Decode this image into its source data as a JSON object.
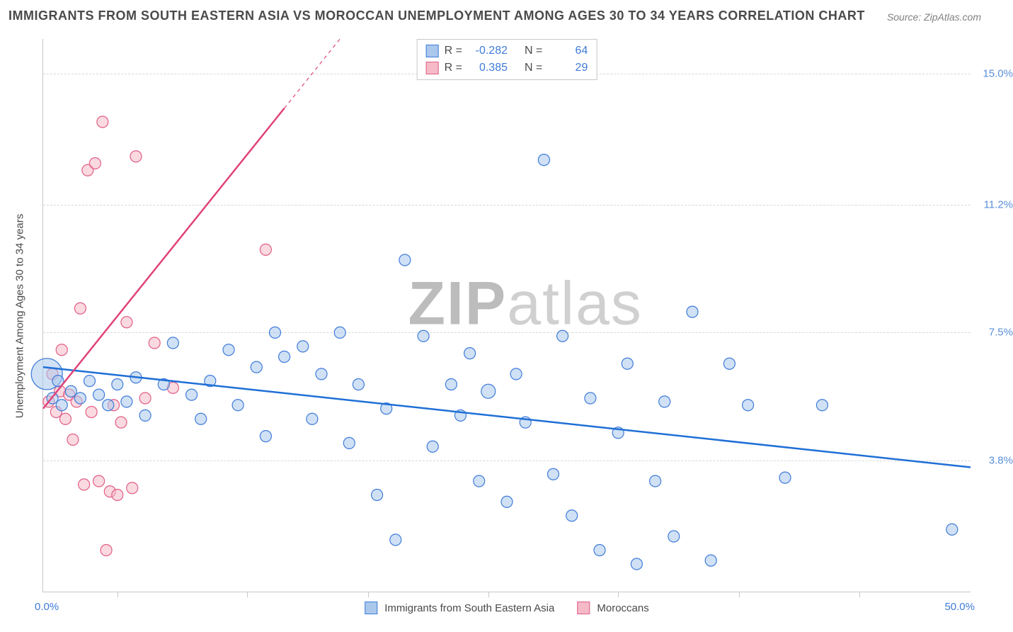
{
  "title": "IMMIGRANTS FROM SOUTH EASTERN ASIA VS MOROCCAN UNEMPLOYMENT AMONG AGES 30 TO 34 YEARS CORRELATION CHART",
  "source_label": "Source: ZipAtlas.com",
  "watermark_prefix": "ZIP",
  "watermark_suffix": "atlas",
  "y_axis_label": "Unemployment Among Ages 30 to 34 years",
  "x_axis": {
    "min": 0.0,
    "max": 50.0,
    "start_label": "0.0%",
    "end_label": "50.0%",
    "tick_positions_pct": [
      8,
      22,
      35,
      48,
      62,
      75,
      88
    ]
  },
  "y_axis": {
    "min": 0.0,
    "max": 16.0,
    "tick_values": [
      3.8,
      7.5,
      11.2,
      15.0
    ],
    "tick_labels": [
      "3.8%",
      "7.5%",
      "11.2%",
      "15.0%"
    ]
  },
  "grid_color": "#d8d8d8",
  "background_color": "#ffffff",
  "series": {
    "blue": {
      "label": "Immigrants from South Eastern Asia",
      "fill": "#a9c8ec",
      "stroke": "#3f7bd9",
      "fill_opacity": 0.55,
      "line_color": "#1f6fd6",
      "line_width": 2.5,
      "R": "-0.282",
      "N": "64",
      "trend": {
        "x1": 0.0,
        "y1": 6.5,
        "x2": 50.0,
        "y2": 3.6
      },
      "points": [
        {
          "x": 0.2,
          "y": 6.3,
          "r": 22
        },
        {
          "x": 0.5,
          "y": 5.6,
          "r": 8
        },
        {
          "x": 0.8,
          "y": 6.1,
          "r": 8
        },
        {
          "x": 1.0,
          "y": 5.4,
          "r": 8
        },
        {
          "x": 1.5,
          "y": 5.8,
          "r": 8
        },
        {
          "x": 2.0,
          "y": 5.6,
          "r": 8
        },
        {
          "x": 2.5,
          "y": 6.1,
          "r": 8
        },
        {
          "x": 3.0,
          "y": 5.7,
          "r": 8
        },
        {
          "x": 3.5,
          "y": 5.4,
          "r": 8
        },
        {
          "x": 4.0,
          "y": 6.0,
          "r": 8
        },
        {
          "x": 4.5,
          "y": 5.5,
          "r": 8
        },
        {
          "x": 5.0,
          "y": 6.2,
          "r": 8
        },
        {
          "x": 5.5,
          "y": 5.1,
          "r": 8
        },
        {
          "x": 6.5,
          "y": 6.0,
          "r": 8
        },
        {
          "x": 7.0,
          "y": 7.2,
          "r": 8
        },
        {
          "x": 8.0,
          "y": 5.7,
          "r": 8
        },
        {
          "x": 8.5,
          "y": 5.0,
          "r": 8
        },
        {
          "x": 9.0,
          "y": 6.1,
          "r": 8
        },
        {
          "x": 10.0,
          "y": 7.0,
          "r": 8
        },
        {
          "x": 10.5,
          "y": 5.4,
          "r": 8
        },
        {
          "x": 11.5,
          "y": 6.5,
          "r": 8
        },
        {
          "x": 12.0,
          "y": 4.5,
          "r": 8
        },
        {
          "x": 12.5,
          "y": 7.5,
          "r": 8
        },
        {
          "x": 13.0,
          "y": 6.8,
          "r": 8
        },
        {
          "x": 14.0,
          "y": 7.1,
          "r": 8
        },
        {
          "x": 14.5,
          "y": 5.0,
          "r": 8
        },
        {
          "x": 15.0,
          "y": 6.3,
          "r": 8
        },
        {
          "x": 16.0,
          "y": 7.5,
          "r": 8
        },
        {
          "x": 16.5,
          "y": 4.3,
          "r": 8
        },
        {
          "x": 17.0,
          "y": 6.0,
          "r": 8
        },
        {
          "x": 18.0,
          "y": 2.8,
          "r": 8
        },
        {
          "x": 18.5,
          "y": 5.3,
          "r": 8
        },
        {
          "x": 19.0,
          "y": 1.5,
          "r": 8
        },
        {
          "x": 19.5,
          "y": 9.6,
          "r": 8
        },
        {
          "x": 20.5,
          "y": 7.4,
          "r": 8
        },
        {
          "x": 21.0,
          "y": 4.2,
          "r": 8
        },
        {
          "x": 22.0,
          "y": 6.0,
          "r": 8
        },
        {
          "x": 22.5,
          "y": 5.1,
          "r": 8
        },
        {
          "x": 23.0,
          "y": 6.9,
          "r": 8
        },
        {
          "x": 23.5,
          "y": 3.2,
          "r": 8
        },
        {
          "x": 24.0,
          "y": 5.8,
          "r": 10
        },
        {
          "x": 25.0,
          "y": 2.6,
          "r": 8
        },
        {
          "x": 25.5,
          "y": 6.3,
          "r": 8
        },
        {
          "x": 26.0,
          "y": 4.9,
          "r": 8
        },
        {
          "x": 27.0,
          "y": 12.5,
          "r": 8
        },
        {
          "x": 27.5,
          "y": 3.4,
          "r": 8
        },
        {
          "x": 28.0,
          "y": 7.4,
          "r": 8
        },
        {
          "x": 28.5,
          "y": 2.2,
          "r": 8
        },
        {
          "x": 29.5,
          "y": 5.6,
          "r": 8
        },
        {
          "x": 30.0,
          "y": 1.2,
          "r": 8
        },
        {
          "x": 31.0,
          "y": 4.6,
          "r": 8
        },
        {
          "x": 31.5,
          "y": 6.6,
          "r": 8
        },
        {
          "x": 32.0,
          "y": 0.8,
          "r": 8
        },
        {
          "x": 33.0,
          "y": 3.2,
          "r": 8
        },
        {
          "x": 33.5,
          "y": 5.5,
          "r": 8
        },
        {
          "x": 34.0,
          "y": 1.6,
          "r": 8
        },
        {
          "x": 35.0,
          "y": 8.1,
          "r": 8
        },
        {
          "x": 36.0,
          "y": 0.9,
          "r": 8
        },
        {
          "x": 37.0,
          "y": 6.6,
          "r": 8
        },
        {
          "x": 38.0,
          "y": 5.4,
          "r": 8
        },
        {
          "x": 40.0,
          "y": 3.3,
          "r": 8
        },
        {
          "x": 42.0,
          "y": 5.4,
          "r": 8
        },
        {
          "x": 49.0,
          "y": 1.8,
          "r": 8
        }
      ]
    },
    "pink": {
      "label": "Moroccans",
      "fill": "#f5b9c8",
      "stroke": "#e05e85",
      "fill_opacity": 0.55,
      "line_color": "#e04379",
      "line_width": 2.5,
      "R": "0.385",
      "N": "29",
      "trend": {
        "x1": 0.0,
        "y1": 5.3,
        "x2": 16.0,
        "y2": 16.0
      },
      "trend_dashed_after_x": 13.0,
      "points": [
        {
          "x": 0.3,
          "y": 5.5,
          "r": 8
        },
        {
          "x": 0.5,
          "y": 6.3,
          "r": 8
        },
        {
          "x": 0.7,
          "y": 5.2,
          "r": 8
        },
        {
          "x": 0.9,
          "y": 5.8,
          "r": 8
        },
        {
          "x": 1.0,
          "y": 7.0,
          "r": 8
        },
        {
          "x": 1.2,
          "y": 5.0,
          "r": 8
        },
        {
          "x": 1.4,
          "y": 5.7,
          "r": 8
        },
        {
          "x": 1.6,
          "y": 4.4,
          "r": 8
        },
        {
          "x": 1.8,
          "y": 5.5,
          "r": 8
        },
        {
          "x": 2.0,
          "y": 8.2,
          "r": 8
        },
        {
          "x": 2.2,
          "y": 3.1,
          "r": 8
        },
        {
          "x": 2.4,
          "y": 12.2,
          "r": 8
        },
        {
          "x": 2.6,
          "y": 5.2,
          "r": 8
        },
        {
          "x": 2.8,
          "y": 12.4,
          "r": 8
        },
        {
          "x": 3.0,
          "y": 3.2,
          "r": 8
        },
        {
          "x": 3.2,
          "y": 13.6,
          "r": 8
        },
        {
          "x": 3.4,
          "y": 1.2,
          "r": 8
        },
        {
          "x": 3.6,
          "y": 2.9,
          "r": 8
        },
        {
          "x": 3.8,
          "y": 5.4,
          "r": 8
        },
        {
          "x": 4.0,
          "y": 2.8,
          "r": 8
        },
        {
          "x": 4.2,
          "y": 4.9,
          "r": 8
        },
        {
          "x": 4.5,
          "y": 7.8,
          "r": 8
        },
        {
          "x": 4.8,
          "y": 3.0,
          "r": 8
        },
        {
          "x": 5.0,
          "y": 12.6,
          "r": 8
        },
        {
          "x": 5.5,
          "y": 5.6,
          "r": 8
        },
        {
          "x": 6.0,
          "y": 7.2,
          "r": 8
        },
        {
          "x": 7.0,
          "y": 5.9,
          "r": 8
        },
        {
          "x": 12.0,
          "y": 9.9,
          "r": 8
        }
      ]
    }
  },
  "legend_top": {
    "r_label": "R =",
    "n_label": "N ="
  }
}
